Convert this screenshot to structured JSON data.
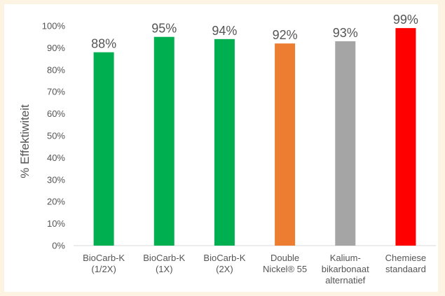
{
  "chart_data": {
    "type": "bar",
    "title": "",
    "xlabel": "",
    "ylabel": "% Effektiwiteit",
    "ylim": [
      0,
      100
    ],
    "yticks": [
      "0%",
      "10%",
      "20%",
      "30%",
      "40%",
      "50%",
      "60%",
      "70%",
      "80%",
      "90%",
      "100%"
    ],
    "grid": false,
    "legend": "none",
    "categories": [
      [
        "BioCarb-K",
        "(1/2X)"
      ],
      [
        "BioCarb-K",
        "(1X)"
      ],
      [
        "BioCarb-K",
        "(2X)"
      ],
      [
        "Double",
        "Nickel® 55"
      ],
      [
        "Kalium-",
        "bikarbonaat",
        "alternatief"
      ],
      [
        "Chemiese",
        "standaard"
      ]
    ],
    "values": [
      88,
      95,
      94,
      92,
      93,
      99
    ],
    "value_labels": [
      "88%",
      "95%",
      "94%",
      "92%",
      "93%",
      "99%"
    ],
    "colors": [
      "#00b050",
      "#00b050",
      "#00b050",
      "#ed7d31",
      "#a5a5a5",
      "#ff0000"
    ],
    "background": "#fdf3e3"
  }
}
